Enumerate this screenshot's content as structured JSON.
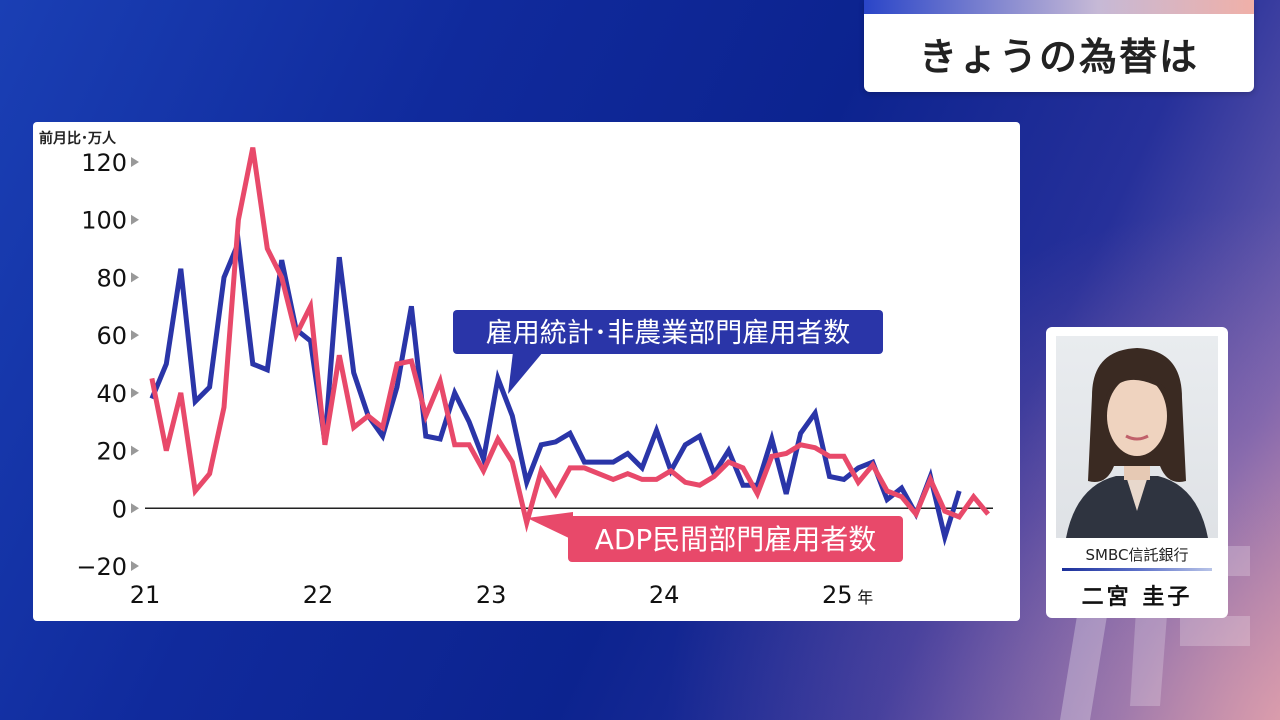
{
  "header": {
    "title": "きょうの為替は"
  },
  "presenter": {
    "organization": "SMBC信託銀行",
    "name": "二宮 圭子"
  },
  "colors": {
    "nfp": "#2a35a8",
    "adp": "#e8496a",
    "panel_bg": "#ffffff"
  },
  "chart_data": {
    "type": "line",
    "unit_label": "前月比･万人",
    "ylim": [
      -20,
      120
    ],
    "yticks": [
      {
        "value": 120,
        "label": "120"
      },
      {
        "value": 100,
        "label": "100"
      },
      {
        "value": 80,
        "label": "80"
      },
      {
        "value": 60,
        "label": "60"
      },
      {
        "value": 40,
        "label": "40"
      },
      {
        "value": 20,
        "label": "20"
      },
      {
        "value": 0,
        "label": "0"
      },
      {
        "value": -20,
        "label": "−20"
      }
    ],
    "xlim": [
      2021.0,
      2025.9
    ],
    "xticks": [
      {
        "value": 2021,
        "label": "21"
      },
      {
        "value": 2022,
        "label": "22"
      },
      {
        "value": 2023,
        "label": "23"
      },
      {
        "value": 2024,
        "label": "24"
      },
      {
        "value": 2025,
        "label": "25",
        "suffix": "年"
      }
    ],
    "series": [
      {
        "name": "雇用統計･非農業部門雇用者数",
        "x_start": 2021.04,
        "x_step": 0.0833,
        "values": [
          38,
          50,
          83,
          37,
          42,
          80,
          92,
          50,
          48,
          86,
          62,
          58,
          23,
          87,
          47,
          32,
          25,
          42,
          70,
          25,
          24,
          40,
          30,
          17,
          45,
          32,
          9,
          22,
          23,
          26,
          16,
          16,
          16,
          19,
          14,
          27,
          13,
          22,
          25,
          12,
          20,
          8,
          8,
          24,
          5,
          26,
          33,
          11,
          10,
          14,
          16,
          3,
          7,
          -2,
          11,
          -10,
          6
        ]
      },
      {
        "name": "ADP民間部門雇用者数",
        "x_start": 2021.04,
        "x_step": 0.0833,
        "values": [
          45,
          20,
          40,
          6,
          12,
          35,
          100,
          125,
          90,
          80,
          60,
          70,
          22,
          53,
          28,
          32,
          28,
          50,
          51,
          32,
          44,
          22,
          22,
          13,
          24,
          16,
          -5,
          13,
          5,
          14,
          14,
          12,
          10,
          12,
          10,
          10,
          13,
          9,
          8,
          11,
          16,
          14,
          5,
          18,
          19,
          22,
          21,
          18,
          18,
          9,
          15,
          6,
          4,
          -2,
          10,
          -1,
          -3,
          4,
          -2
        ]
      }
    ],
    "annotations": [
      {
        "text": "雇用統計･非農業部門雇用者数",
        "series": 0
      },
      {
        "text": "ADP民間部門雇用者数",
        "series": 1
      }
    ],
    "grid": false,
    "zero_line": true
  }
}
